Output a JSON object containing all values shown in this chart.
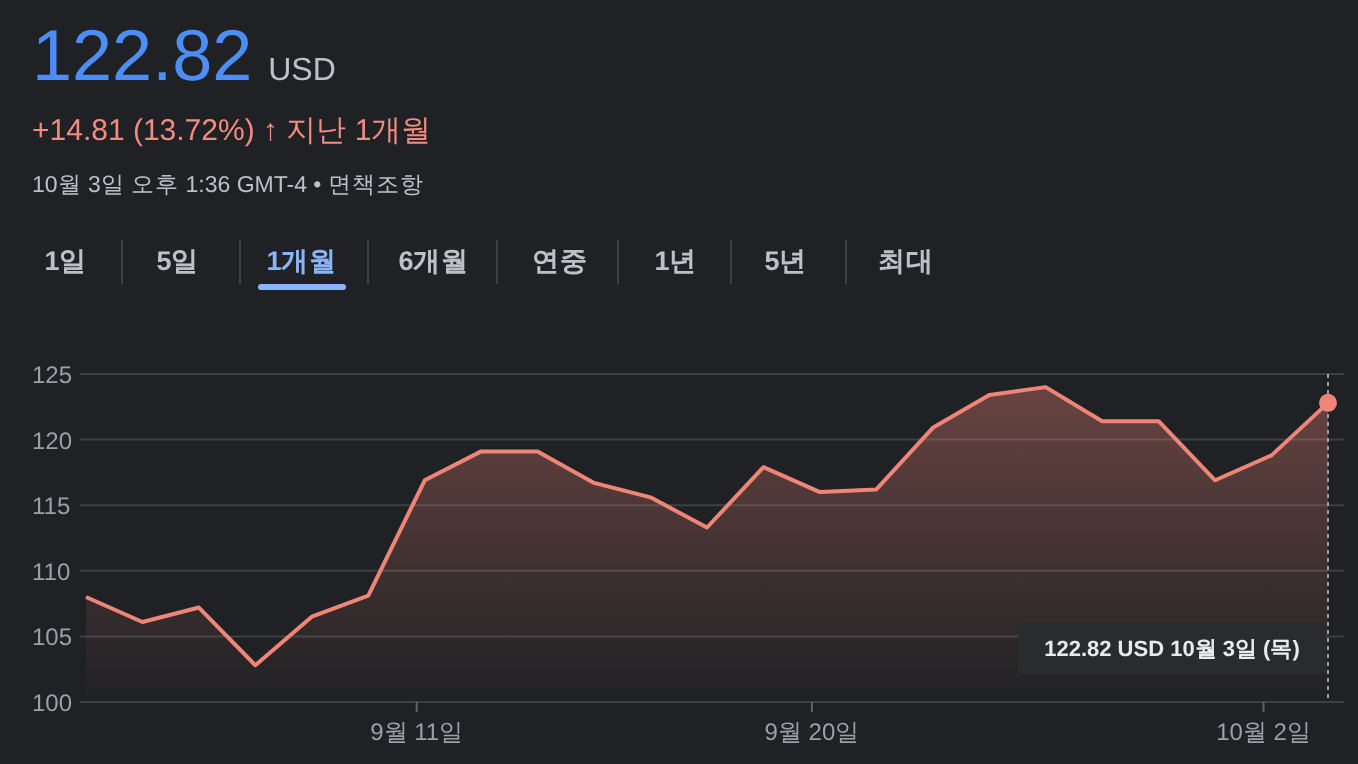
{
  "chart_data": {
    "type": "area",
    "title": "122.82",
    "subtitle": "+14.81 (13.72%) ↑ 지난 1개월",
    "categories": [
      null,
      null,
      null,
      null,
      null,
      null,
      "9월 11일",
      null,
      null,
      null,
      null,
      null,
      null,
      "9월 20일",
      null,
      null,
      null,
      null,
      null,
      null,
      null,
      "10월 2일",
      null
    ],
    "series": [
      {
        "color": "#ee8577",
        "values": [
          108.0,
          106.1,
          107.2,
          102.8,
          106.5,
          108.1,
          116.9,
          119.1,
          119.1,
          116.7,
          115.6,
          113.3,
          117.9,
          116.0,
          116.2,
          120.9,
          123.4,
          124.0,
          121.4,
          121.4,
          116.9,
          118.8,
          122.8
        ]
      }
    ],
    "ylim": [
      100,
      125
    ],
    "yticks": [
      100,
      105,
      110,
      115,
      120,
      125
    ],
    "grid": "y",
    "annotations": [
      "USD",
      "10월 3일 오후 1:36 GMT-4 • 면책조항",
      "1일",
      "5일",
      "1개월",
      "6개월",
      "연중",
      "1년",
      "5년",
      "최대",
      "122.82 USD  10월 3일 (목)"
    ]
  }
}
